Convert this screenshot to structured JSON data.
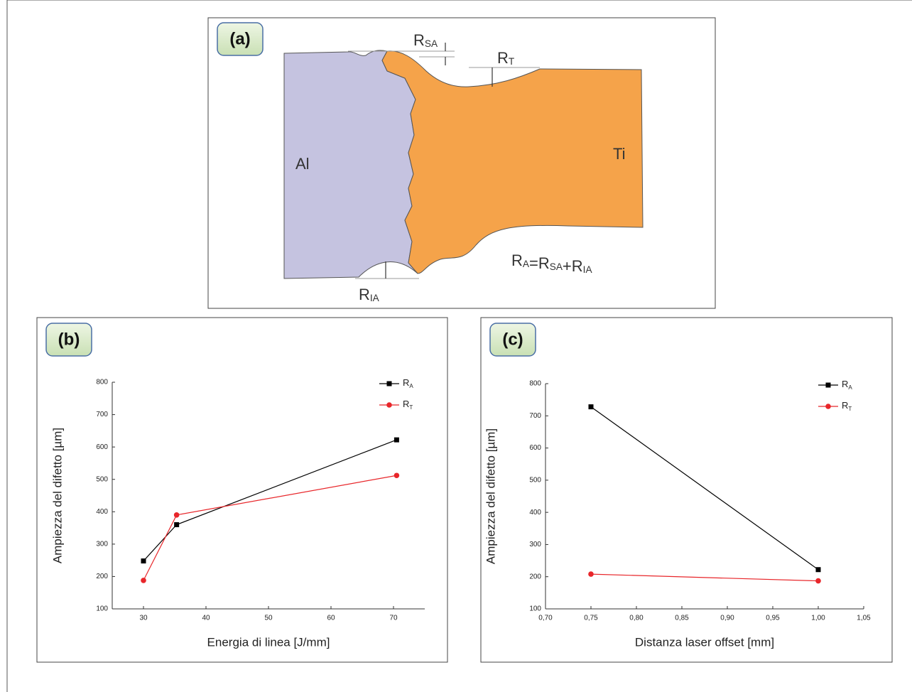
{
  "diagram": {
    "panel": "(a)",
    "labels": {
      "al": "Al",
      "ti": "Ti",
      "rsa": "RSA",
      "rt": "RT",
      "ria": "RIA",
      "equation": "RA=RSA+RIA"
    }
  },
  "chart_data": [
    {
      "type": "line",
      "panel": "(b)",
      "x_label": "Energia di linea [J/mm]",
      "y_label": "Ampiezza del difetto [µm]",
      "x": [
        30,
        35.3,
        70.5
      ],
      "series": [
        {
          "name": "RA",
          "color": "#000000",
          "marker": "square",
          "values": [
            248,
            360,
            622
          ]
        },
        {
          "name": "RT",
          "color": "#e8262a",
          "marker": "circle",
          "values": [
            188,
            390,
            512
          ]
        }
      ],
      "xlim": [
        25,
        75
      ],
      "xticks": [
        30,
        40,
        50,
        60,
        70
      ],
      "ylim": [
        100,
        800
      ],
      "yticks": [
        100,
        200,
        300,
        400,
        500,
        600,
        700,
        800
      ],
      "legend": "upper right"
    },
    {
      "type": "line",
      "panel": "(c)",
      "x_label": "Distanza laser offset [mm]",
      "y_label": "Ampiezza del difetto [µm]",
      "x": [
        0.75,
        1.0
      ],
      "series": [
        {
          "name": "RA",
          "color": "#000000",
          "marker": "square",
          "values": [
            728,
            222
          ]
        },
        {
          "name": "RT",
          "color": "#e8262a",
          "marker": "circle",
          "values": [
            208,
            187
          ]
        }
      ],
      "xlim": [
        0.7,
        1.05
      ],
      "xticks": [
        {
          "value": 0.7,
          "label": "0,70"
        },
        {
          "value": 0.75,
          "label": "0,75"
        },
        {
          "value": 0.8,
          "label": "0,80"
        },
        {
          "value": 0.85,
          "label": "0,85"
        },
        {
          "value": 0.9,
          "label": "0,90"
        },
        {
          "value": 0.95,
          "label": "0,95"
        },
        {
          "value": 1.0,
          "label": "1,00"
        },
        {
          "value": 1.05,
          "label": "1,05"
        }
      ],
      "ylim": [
        100,
        800
      ],
      "yticks": [
        100,
        200,
        300,
        400,
        500,
        600,
        700,
        800
      ],
      "legend": "upper right"
    }
  ]
}
